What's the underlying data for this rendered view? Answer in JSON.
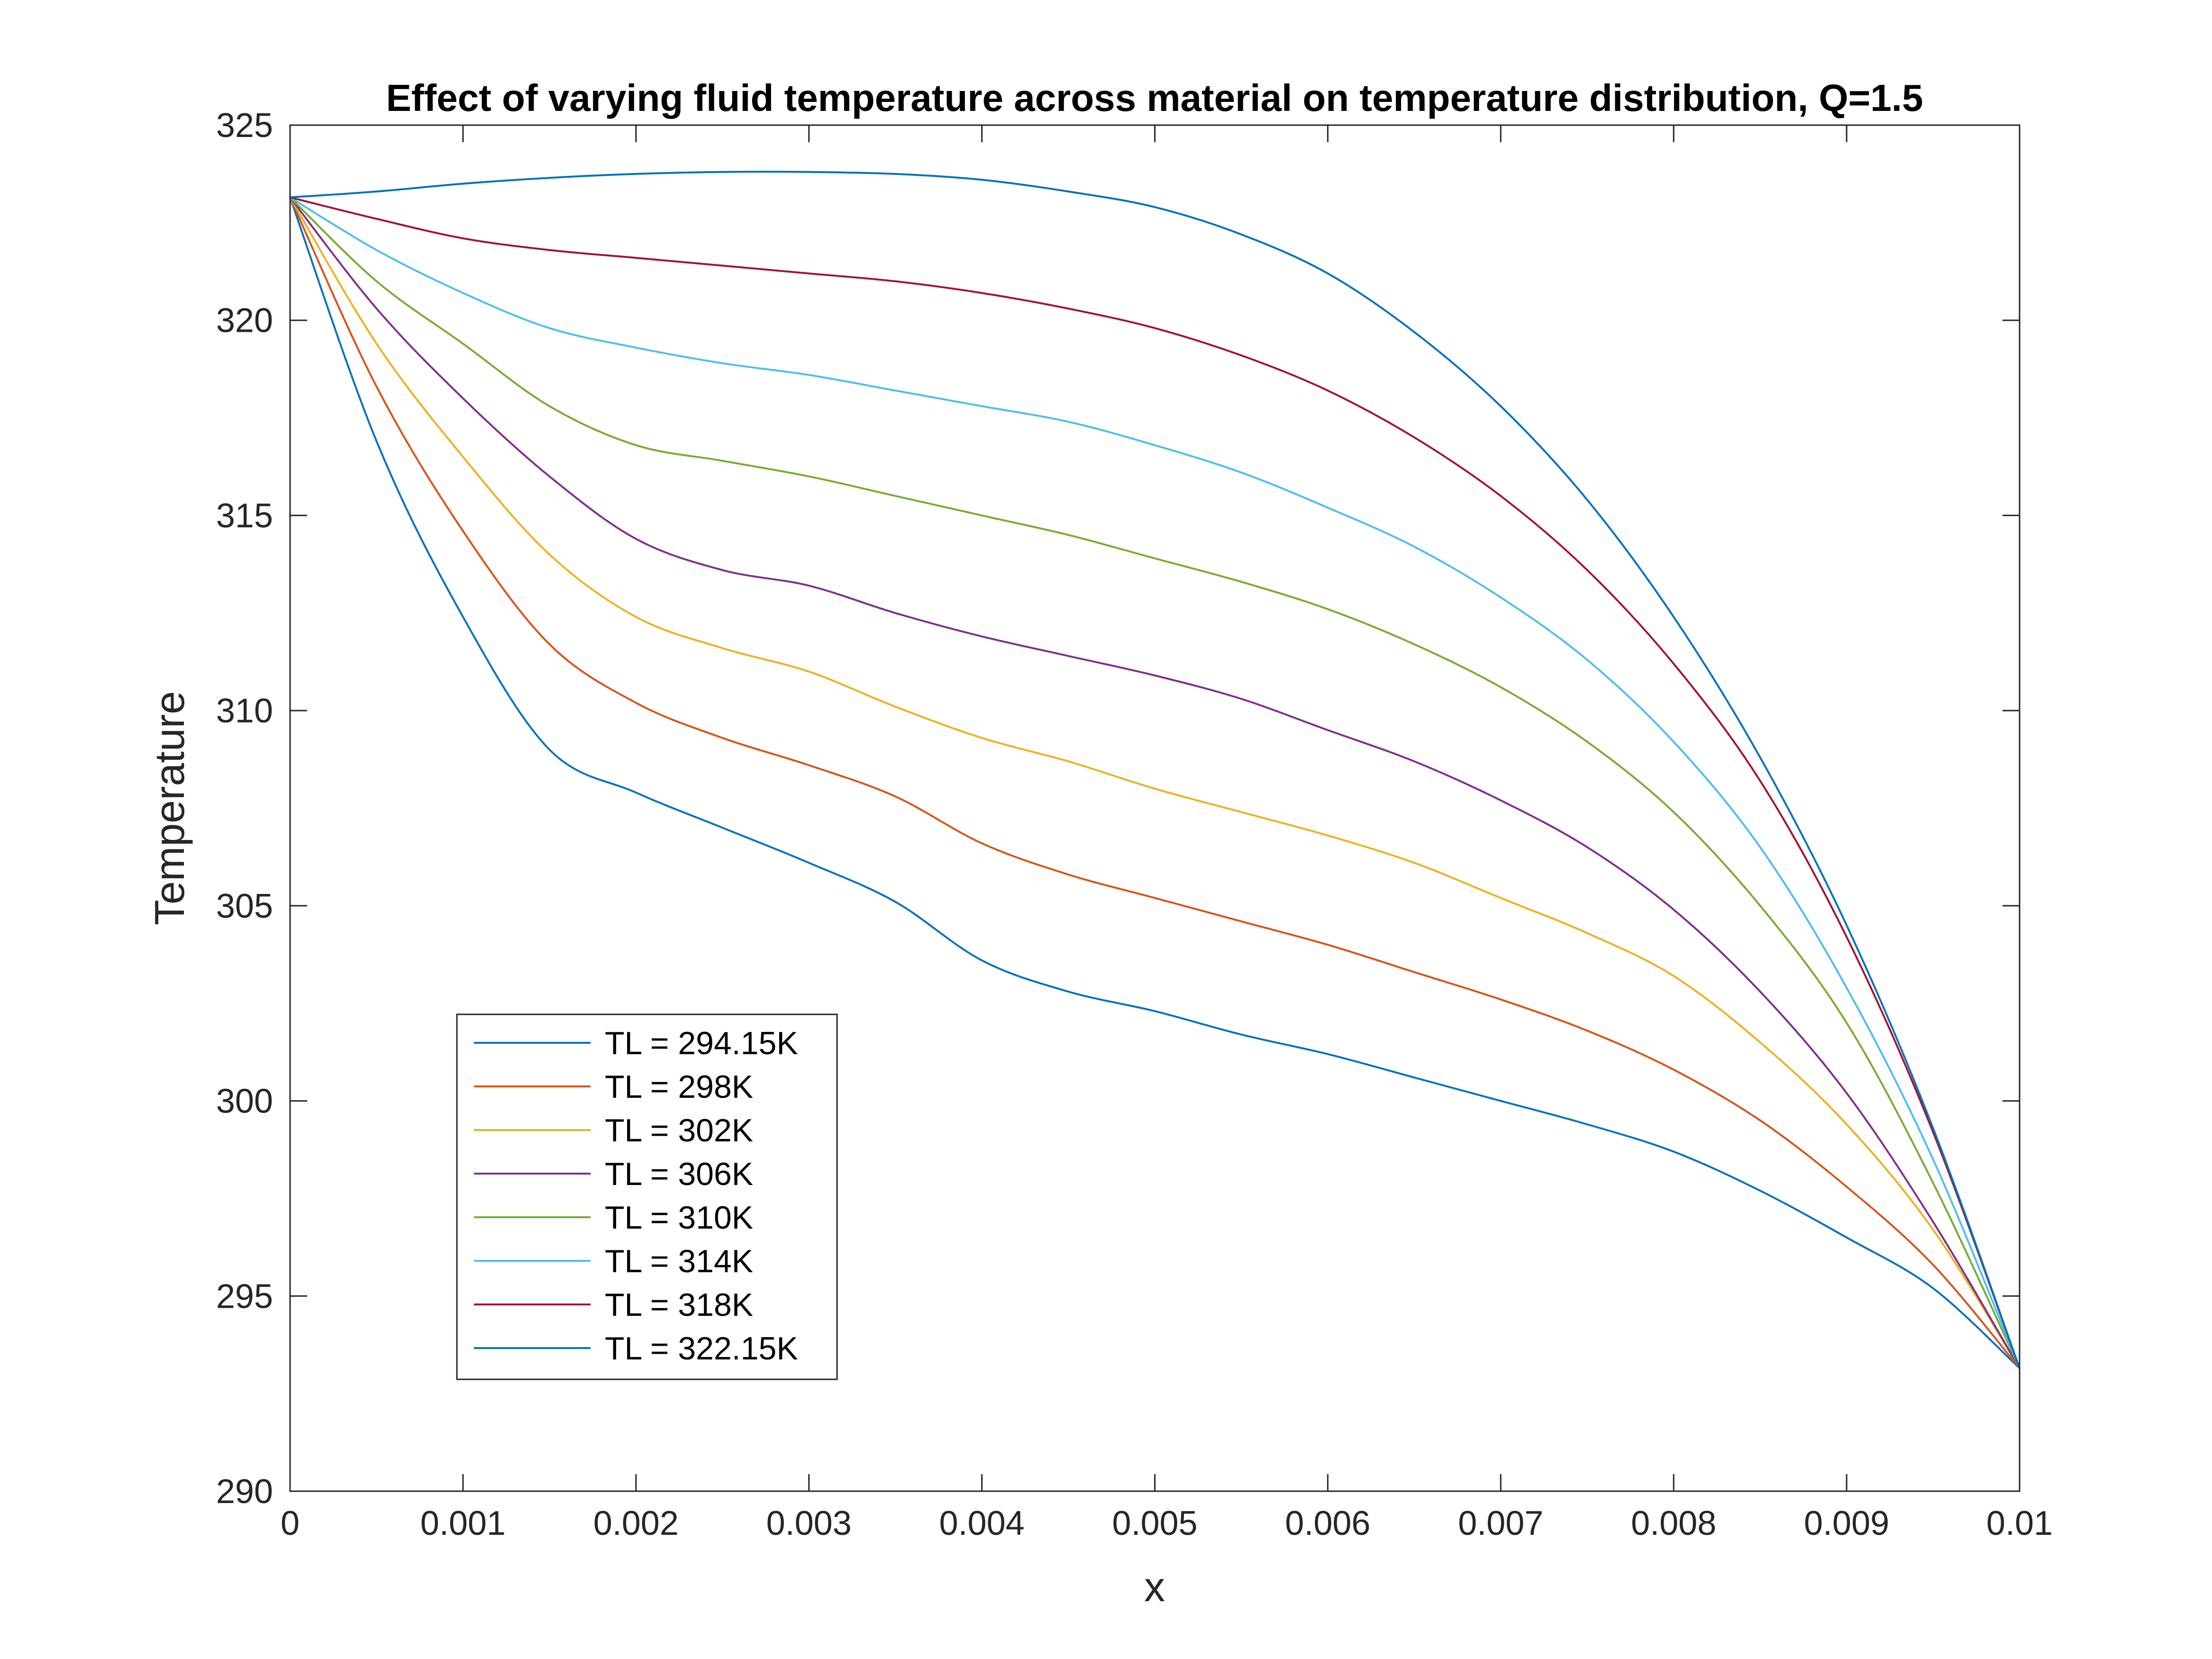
{
  "chart_data": {
    "type": "line",
    "title": "Effect of varying fluid temperature across material on temperature distribution, Q=1.5",
    "xlabel": "x",
    "ylabel": "Temperature",
    "xlim": [
      0,
      0.01
    ],
    "ylim": [
      290,
      325
    ],
    "xticks": [
      0,
      0.001,
      0.002,
      0.003,
      0.004,
      0.005,
      0.006,
      0.007,
      0.008,
      0.009,
      0.01
    ],
    "xtick_labels": [
      "0",
      "0.001",
      "0.002",
      "0.003",
      "0.004",
      "0.005",
      "0.006",
      "0.007",
      "0.008",
      "0.009",
      "0.01"
    ],
    "yticks": [
      290,
      295,
      300,
      305,
      310,
      315,
      320,
      325
    ],
    "ytick_labels": [
      "290",
      "295",
      "300",
      "305",
      "310",
      "315",
      "320",
      "325"
    ],
    "grid": false,
    "box": true,
    "legend_position": "lower-left",
    "x": [
      0,
      0.0005,
      0.001,
      0.0015,
      0.002,
      0.0025,
      0.003,
      0.0035,
      0.004,
      0.0045,
      0.005,
      0.0055,
      0.006,
      0.0065,
      0.007,
      0.0075,
      0.008,
      0.0085,
      0.009,
      0.0095,
      0.01
    ],
    "series": [
      {
        "name": "TL = 294.15K",
        "color": "#0072BD",
        "values": [
          323.15,
          316.9,
          312.4,
          309.0,
          307.9,
          307.0,
          306.1,
          305.1,
          303.6,
          302.8,
          302.3,
          301.7,
          301.2,
          300.6,
          300.0,
          299.4,
          298.7,
          297.7,
          296.5,
          295.2,
          293.15
        ]
      },
      {
        "name": "TL = 298K",
        "color": "#D95319",
        "values": [
          323.15,
          318.3,
          314.6,
          311.7,
          310.2,
          309.3,
          308.6,
          307.8,
          306.6,
          305.8,
          305.2,
          304.6,
          304.0,
          303.3,
          302.6,
          301.8,
          300.8,
          299.5,
          297.8,
          295.8,
          293.15
        ]
      },
      {
        "name": "TL = 302K",
        "color": "#EDB120",
        "values": [
          323.15,
          319.4,
          316.5,
          314.0,
          312.4,
          311.6,
          311.0,
          310.1,
          309.3,
          308.7,
          308.0,
          307.4,
          306.8,
          306.1,
          305.2,
          304.3,
          303.2,
          301.5,
          299.4,
          296.7,
          293.15
        ]
      },
      {
        "name": "TL = 306K",
        "color": "#7E2F8E",
        "values": [
          323.15,
          320.3,
          318.0,
          316.0,
          314.4,
          313.6,
          313.2,
          312.5,
          311.9,
          311.4,
          310.9,
          310.3,
          309.5,
          308.7,
          307.7,
          306.5,
          304.9,
          302.8,
          300.2,
          296.9,
          293.15
        ]
      },
      {
        "name": "TL = 310K",
        "color": "#77AC30",
        "values": [
          323.15,
          321.0,
          319.4,
          317.8,
          316.8,
          316.4,
          316.0,
          315.5,
          315.0,
          314.5,
          313.9,
          313.3,
          312.6,
          311.7,
          310.6,
          309.2,
          307.4,
          305.0,
          302.0,
          297.9,
          293.15
        ]
      },
      {
        "name": "TL = 314K",
        "color": "#4DBEEE",
        "values": [
          323.15,
          321.8,
          320.7,
          319.8,
          319.3,
          318.9,
          318.6,
          318.2,
          317.8,
          317.4,
          316.8,
          316.1,
          315.2,
          314.2,
          312.9,
          311.3,
          309.2,
          306.5,
          302.9,
          298.5,
          293.15
        ]
      },
      {
        "name": "TL = 318K",
        "color": "#A2142F",
        "values": [
          323.15,
          322.6,
          322.1,
          321.8,
          321.6,
          321.4,
          321.2,
          321.0,
          320.7,
          320.3,
          319.8,
          319.1,
          318.2,
          317.0,
          315.5,
          313.6,
          311.2,
          308.2,
          304.2,
          299.2,
          293.15
        ]
      },
      {
        "name": "TL = 322.15K",
        "color": "#0072BD",
        "values": [
          323.15,
          323.3,
          323.5,
          323.65,
          323.75,
          323.8,
          323.8,
          323.75,
          323.6,
          323.3,
          322.9,
          322.2,
          321.2,
          319.7,
          317.8,
          315.4,
          312.4,
          308.8,
          304.5,
          299.3,
          293.15
        ]
      }
    ]
  }
}
